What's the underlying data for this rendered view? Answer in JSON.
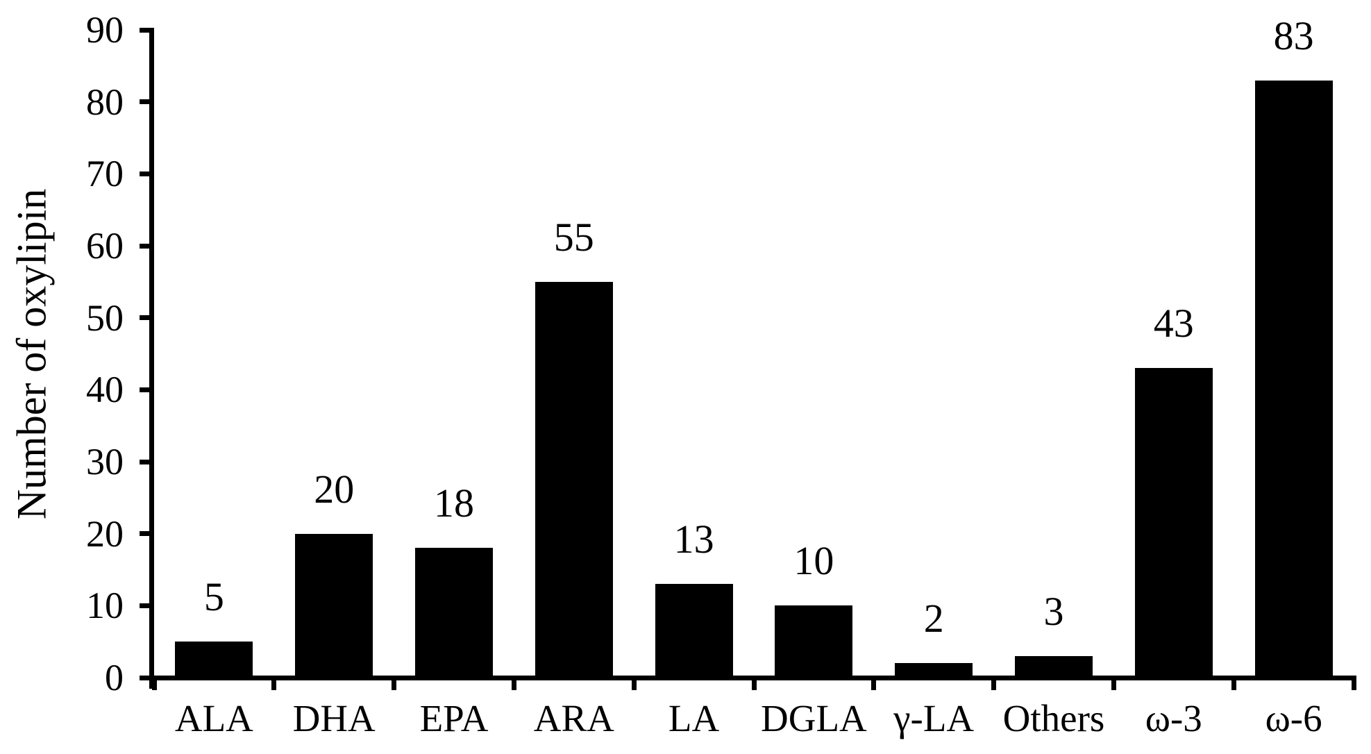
{
  "figure": {
    "background": "#ffffff",
    "ink_color": "#000000"
  },
  "chart_data": {
    "type": "bar",
    "title": "",
    "xlabel": "",
    "ylabel": "Number of oxylipin",
    "categories": [
      "ALA",
      "DHA",
      "EPA",
      "ARA",
      "LA",
      "DGLA",
      "γ-LA",
      "Others",
      "ω-3",
      "ω-6"
    ],
    "values": [
      5,
      20,
      18,
      55,
      13,
      10,
      2,
      3,
      43,
      83
    ],
    "data_labels": [
      "5",
      "20",
      "18",
      "55",
      "13",
      "10",
      "2",
      "3",
      "43",
      "83"
    ],
    "ylim": [
      0,
      90
    ],
    "yticks": [
      0,
      10,
      20,
      30,
      40,
      50,
      60,
      70,
      80,
      90
    ],
    "grid": false,
    "legend": "none",
    "bar_color": "#000000",
    "data_labels_shown": true
  }
}
